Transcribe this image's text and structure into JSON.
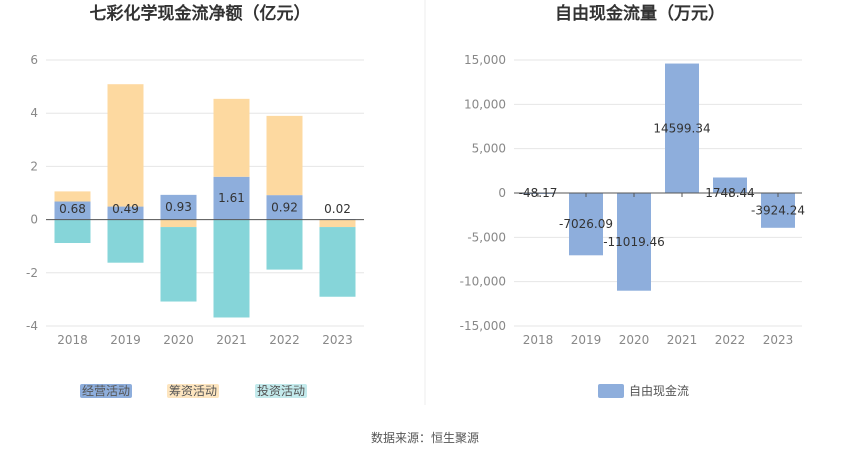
{
  "footer": {
    "source": "数据来源：恒生聚源"
  },
  "colors": {
    "operating": "#8eaedc",
    "financing": "#fdd9a0",
    "investing": "#86d5d9",
    "fcf": "#8eaedc",
    "legend_investing": "#c3eaec",
    "legend_financing": "#fde5bf"
  },
  "chart_data": [
    {
      "type": "bar",
      "stacked": true,
      "title": "七彩化学现金流净额（亿元）",
      "categories": [
        "2018",
        "2019",
        "2020",
        "2021",
        "2022",
        "2023"
      ],
      "ylim": [
        -4,
        6
      ],
      "yticks": [
        "6",
        "4",
        "2",
        "0",
        "-2",
        "-4"
      ],
      "grid": true,
      "legend_position": "bottom",
      "series": [
        {
          "name": "经营活动",
          "values": [
            0.68,
            0.49,
            0.93,
            1.61,
            0.92,
            0.02
          ],
          "labels": [
            "0.68",
            "0.49",
            "0.93",
            "1.61",
            "0.92",
            "0.02"
          ]
        },
        {
          "name": "筹资活动",
          "values": [
            0.38,
            4.6,
            -0.28,
            2.93,
            2.98,
            -0.28
          ]
        },
        {
          "name": "投资活动",
          "values": [
            -0.88,
            -1.62,
            -2.8,
            -3.68,
            -1.88,
            -2.62
          ]
        }
      ]
    },
    {
      "type": "bar",
      "title": "自由现金流量（万元）",
      "categories": [
        "2018",
        "2019",
        "2020",
        "2021",
        "2022",
        "2023"
      ],
      "ylim": [
        -15000,
        15000
      ],
      "yticks": [
        "15,000",
        "10,000",
        "5,000",
        "0",
        "-5,000",
        "-10,000",
        "-15,000"
      ],
      "grid": true,
      "legend_position": "bottom",
      "series": [
        {
          "name": "自由现金流",
          "values": [
            -48.17,
            -7026.09,
            -11019.46,
            14599.34,
            1748.44,
            -3924.24
          ],
          "labels": [
            "-48.17",
            "-7026.09",
            "-11019.46",
            "14599.34",
            "1748.44",
            "-3924.24"
          ]
        }
      ]
    }
  ]
}
